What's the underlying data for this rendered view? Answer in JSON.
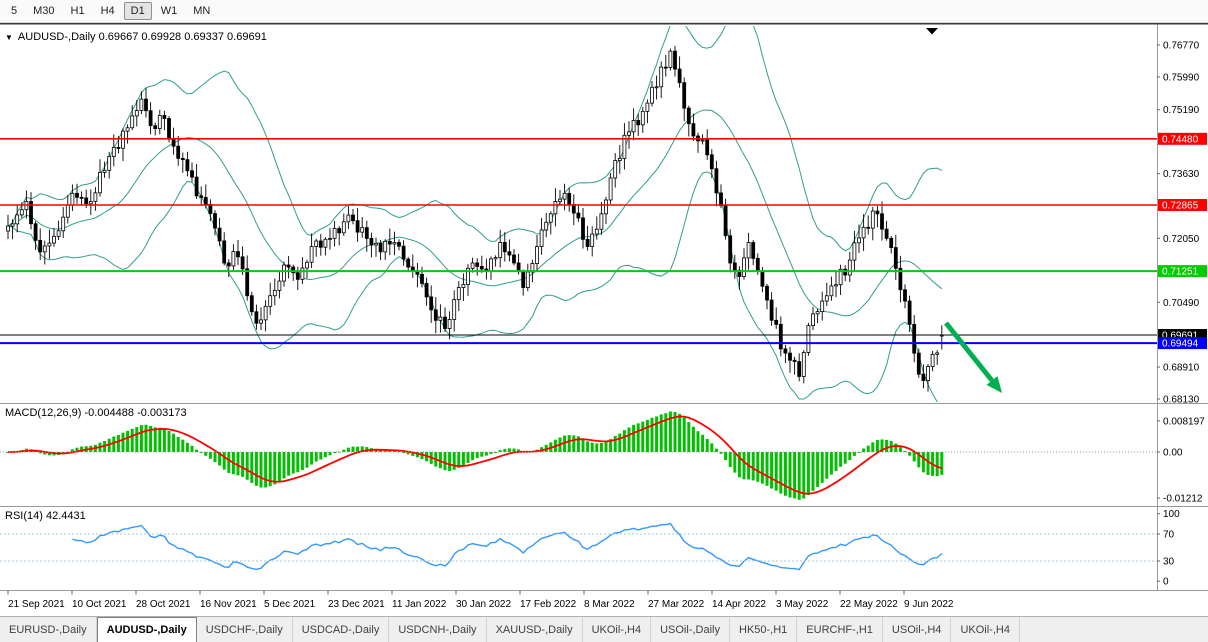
{
  "toolbar": {
    "timeframes": [
      {
        "label": "5",
        "active": false
      },
      {
        "label": "M30",
        "active": false
      },
      {
        "label": "H1",
        "active": false
      },
      {
        "label": "H4",
        "active": false
      },
      {
        "label": "D1",
        "active": true
      },
      {
        "label": "W1",
        "active": false
      },
      {
        "label": "MN",
        "active": false
      }
    ]
  },
  "chart": {
    "title": {
      "icon": "▼",
      "text": "AUDUSD-,Daily 0.69667 0.69928 0.69337 0.69691"
    }
  },
  "indicators": {
    "macd": {
      "label": "MACD(12,26,9) -0.004488 -0.003173"
    },
    "rsi": {
      "label": "RSI(14) 42.4431"
    }
  },
  "tabs": [
    {
      "label": "EURUSD-,Daily",
      "active": false
    },
    {
      "label": "AUDUSD-,Daily",
      "active": true
    },
    {
      "label": "USDCHF-,Daily",
      "active": false
    },
    {
      "label": "USDCAD-,Daily",
      "active": false
    },
    {
      "label": "USDCNH-,Daily",
      "active": false
    },
    {
      "label": "XAUUSD-,Daily",
      "active": false
    },
    {
      "label": "UKOil-,H4",
      "active": false
    },
    {
      "label": "USOil-,Daily",
      "active": false
    },
    {
      "label": "HK50-,H1",
      "active": false
    },
    {
      "label": "EURCHF-,H1",
      "active": false
    },
    {
      "label": "USOil-,H4",
      "active": false
    },
    {
      "label": "UKOil-,H4",
      "active": false
    }
  ],
  "chart_data": {
    "type": "candlestick",
    "symbol": "AUDUSD",
    "timeframe": "Daily",
    "current_ohlc": {
      "open": 0.69667,
      "high": 0.69928,
      "low": 0.69337,
      "close": 0.69691
    },
    "ylim": [
      0.6813,
      0.7677
    ],
    "candle_count": 204,
    "price_anchors": [
      [
        0,
        0.7235
      ],
      [
        4,
        0.7295
      ],
      [
        7,
        0.7172
      ],
      [
        10,
        0.721
      ],
      [
        14,
        0.7315
      ],
      [
        18,
        0.7295
      ],
      [
        22,
        0.7405
      ],
      [
        26,
        0.7475
      ],
      [
        29,
        0.7545
      ],
      [
        31,
        0.748
      ],
      [
        33,
        0.7505
      ],
      [
        36,
        0.743
      ],
      [
        39,
        0.737
      ],
      [
        42,
        0.7305
      ],
      [
        45,
        0.723
      ],
      [
        47,
        0.7145
      ],
      [
        50,
        0.716
      ],
      [
        52,
        0.7065
      ],
      [
        54,
        0.6998
      ],
      [
        57,
        0.7065
      ],
      [
        60,
        0.714
      ],
      [
        63,
        0.7105
      ],
      [
        66,
        0.7185
      ],
      [
        70,
        0.7205
      ],
      [
        74,
        0.7262
      ],
      [
        78,
        0.7205
      ],
      [
        81,
        0.7172
      ],
      [
        84,
        0.7195
      ],
      [
        87,
        0.7135
      ],
      [
        90,
        0.7095
      ],
      [
        93,
        0.7005
      ],
      [
        95,
        0.6985
      ],
      [
        98,
        0.7085
      ],
      [
        101,
        0.7145
      ],
      [
        104,
        0.7125
      ],
      [
        107,
        0.7195
      ],
      [
        110,
        0.7145
      ],
      [
        112,
        0.7085
      ],
      [
        115,
        0.7185
      ],
      [
        118,
        0.7265
      ],
      [
        121,
        0.7315
      ],
      [
        124,
        0.7255
      ],
      [
        126,
        0.7185
      ],
      [
        129,
        0.7265
      ],
      [
        132,
        0.7395
      ],
      [
        135,
        0.7465
      ],
      [
        138,
        0.7515
      ],
      [
        141,
        0.7575
      ],
      [
        144,
        0.7662
      ],
      [
        146,
        0.7585
      ],
      [
        148,
        0.7485
      ],
      [
        151,
        0.7445
      ],
      [
        153,
        0.7375
      ],
      [
        155,
        0.7285
      ],
      [
        157,
        0.7145
      ],
      [
        159,
        0.7112
      ],
      [
        161,
        0.7195
      ],
      [
        163,
        0.7125
      ],
      [
        166,
        0.7005
      ],
      [
        169,
        0.6925
      ],
      [
        172,
        0.6868
      ],
      [
        174,
        0.6992
      ],
      [
        177,
        0.7052
      ],
      [
        180,
        0.7092
      ],
      [
        183,
        0.7152
      ],
      [
        186,
        0.7232
      ],
      [
        189,
        0.7265
      ],
      [
        191,
        0.7205
      ],
      [
        193,
        0.7132
      ],
      [
        195,
        0.7052
      ],
      [
        197,
        0.6925
      ],
      [
        199,
        0.6858
      ],
      [
        201,
        0.6922
      ],
      [
        203,
        0.6969
      ]
    ],
    "overlays": [
      {
        "name": "Bollinger Bands",
        "period": 20,
        "deviation": 2,
        "color": "#2f9e8f"
      }
    ],
    "horizontal_lines": [
      {
        "price": 0.7448,
        "label": "0.74480",
        "color": "#ff0000",
        "width": 1.6
      },
      {
        "price": 0.72865,
        "label": "0.72865",
        "color": "#ff0000",
        "width": 1.6
      },
      {
        "price": 0.71251,
        "label": "0.71251",
        "color": "#00cc00",
        "width": 2
      },
      {
        "price": 0.69691,
        "label": "0.69691",
        "color": "#000000",
        "width": 1
      },
      {
        "price": 0.69494,
        "label": "0.69494",
        "color": "#0000ff",
        "width": 2
      }
    ],
    "price_axis_ticks": [
      0.7677,
      0.7599,
      0.7519,
      0.7363,
      0.7205,
      0.7049,
      0.6891,
      0.6813
    ],
    "time_axis_labels": [
      "21 Sep 2021",
      "10 Oct 2021",
      "28 Oct 2021",
      "16 Nov 2021",
      "5 Dec 2021",
      "23 Dec 2021",
      "11 Jan 2022",
      "30 Jan 2022",
      "17 Feb 2022",
      "8 Mar 2022",
      "27 Mar 2022",
      "14 Apr 2022",
      "3 May 2022",
      "22 May 2022",
      "9 Jun 2022"
    ],
    "macd": {
      "params": [
        12,
        26,
        9
      ],
      "value": -0.004488,
      "signal_value": -0.003173,
      "axis": [
        {
          "label": "0.008197",
          "value": 0.008197
        },
        {
          "label": "0.00",
          "value": 0
        },
        {
          "label": "-0.01212",
          "value": -0.01212
        }
      ],
      "histogram_color": "#00c000",
      "signal_color": "#ff0000"
    },
    "rsi": {
      "period": 14,
      "value": 42.4431,
      "axis": [
        {
          "label": "100",
          "value": 100
        },
        {
          "label": "70",
          "value": 70
        },
        {
          "label": "30",
          "value": 30
        },
        {
          "label": "0",
          "value": 0
        }
      ],
      "levels": [
        70,
        30
      ],
      "line_color": "#3399ff"
    },
    "annotation": {
      "type": "arrow",
      "color": "#00b050",
      "direction": "down-right",
      "from_price": 0.699,
      "to_price": 0.6855
    }
  }
}
